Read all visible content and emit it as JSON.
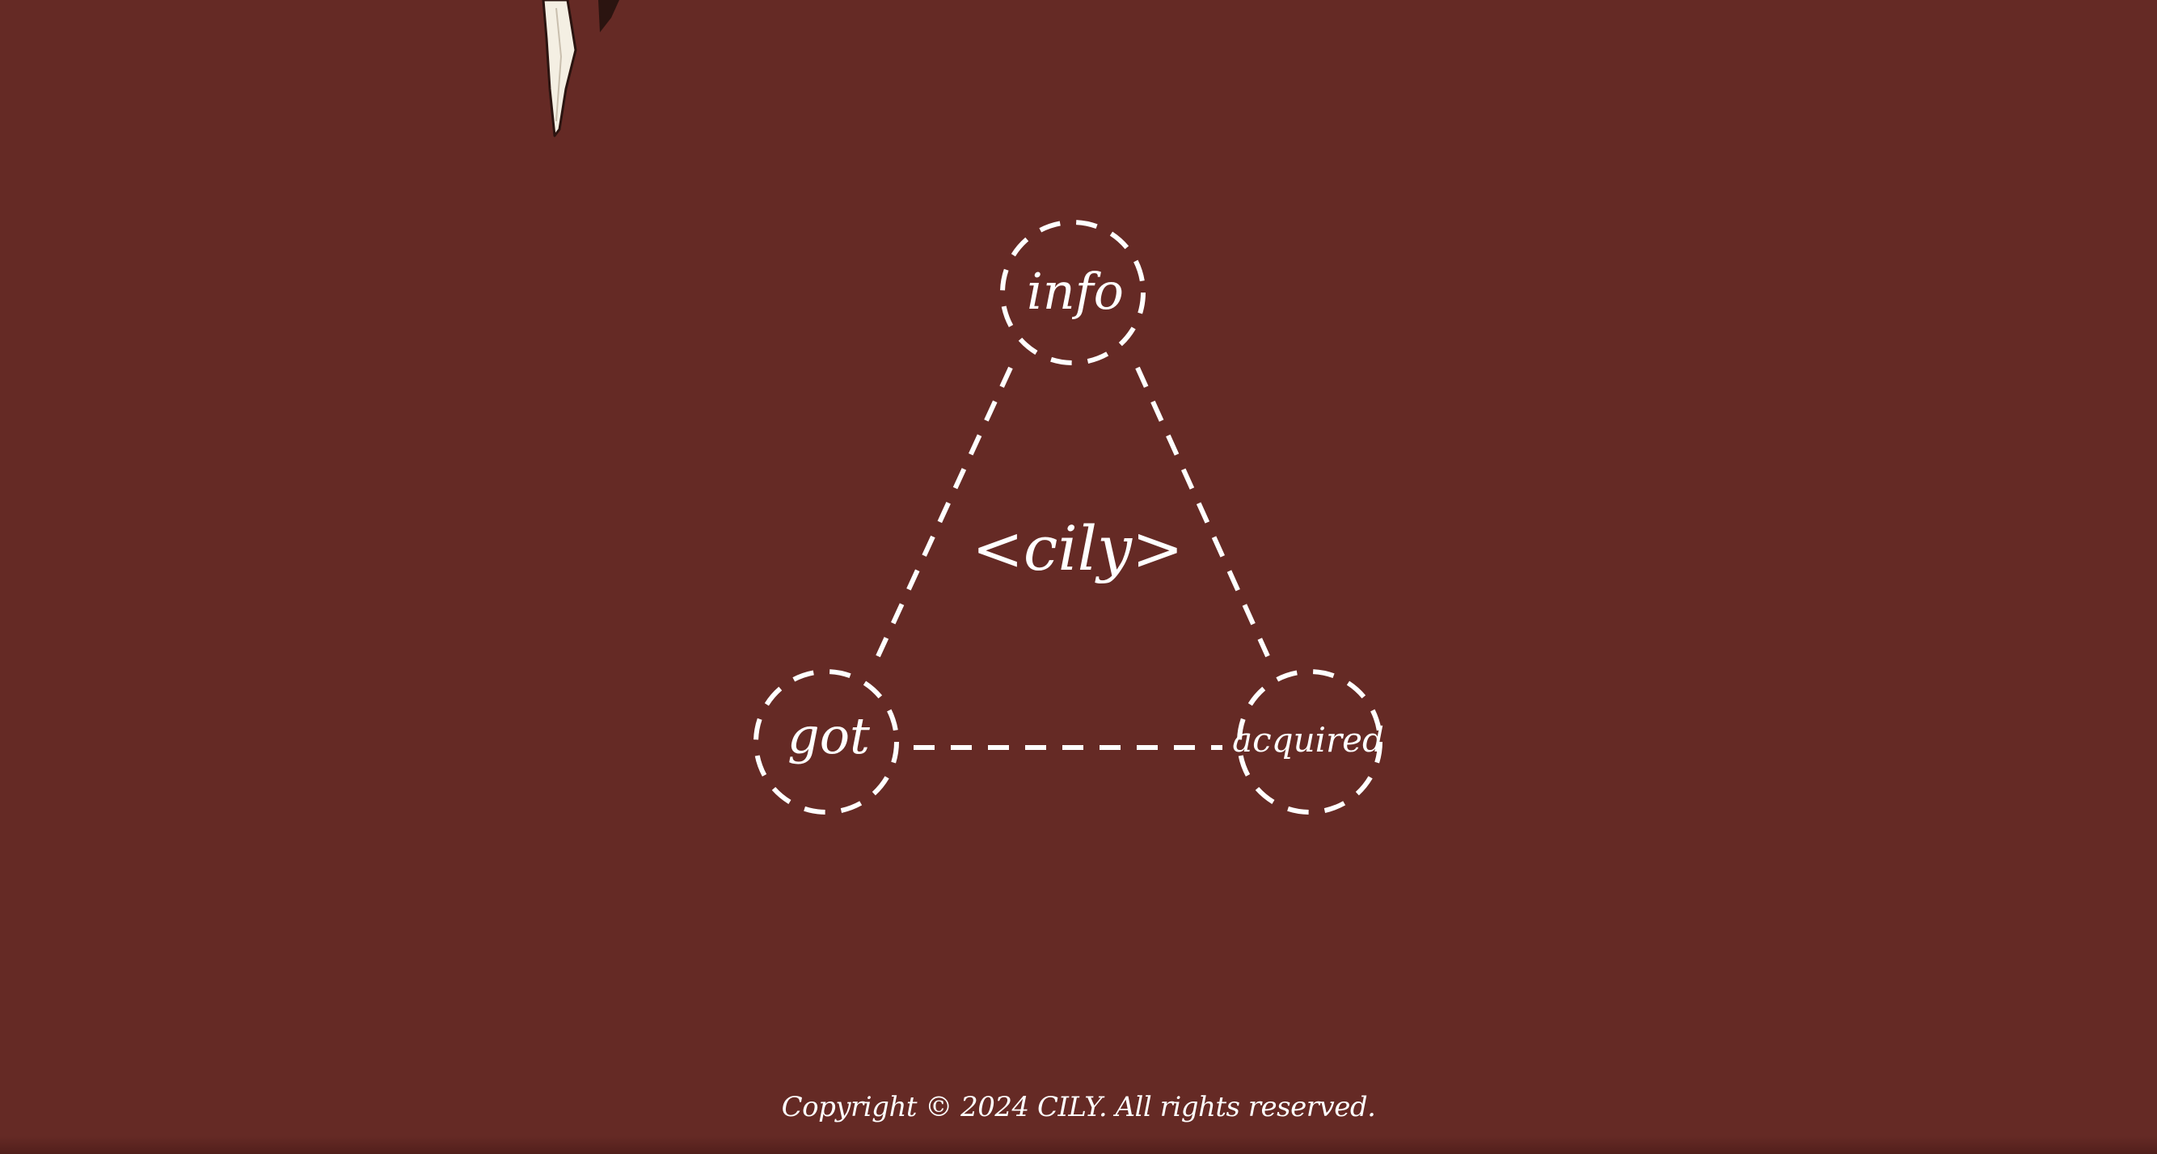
{
  "colors": {
    "background": "#652a25",
    "foreground": "#ffffff",
    "feather_light": "#f4efe3",
    "feather_dark": "#2b1410"
  },
  "decoration": {
    "feather": "quill-feather-icon"
  },
  "diagram": {
    "center_label": "<cily>",
    "nodes": {
      "top": "info",
      "bottom_left": "got",
      "bottom_right": "acquired"
    }
  },
  "footer": {
    "copyright": "Copyright © 2024 CILY. All rights reserved."
  }
}
